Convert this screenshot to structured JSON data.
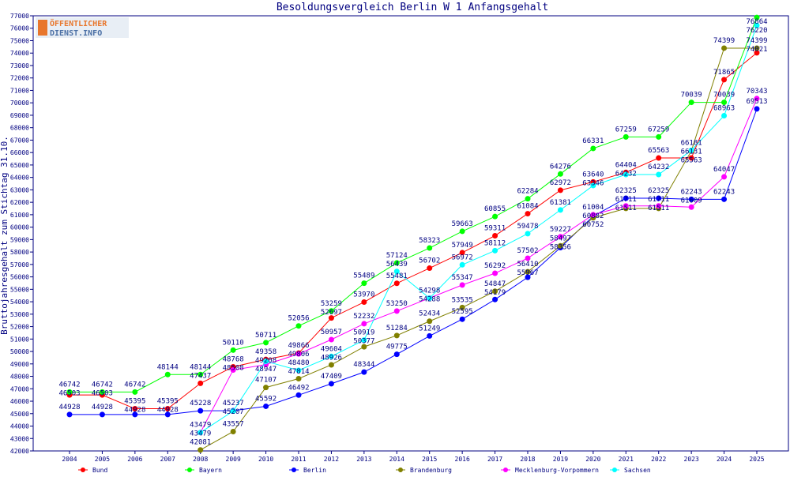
{
  "logo": {
    "line1": "ÖFFENTLICHER",
    "line2": "DIENST.INFO"
  },
  "chart_data": {
    "type": "line",
    "title": "Besoldungsvergleich Berlin W 1 Anfangsgehalt",
    "xlabel": "",
    "ylabel": "Bruttojahresgehalt zum Stichtag 31.10.",
    "ylim": [
      42000,
      77000
    ],
    "ytick_step": 1000,
    "grid": false,
    "legend_placement": "bottom",
    "x": [
      2004,
      2005,
      2006,
      2007,
      2008,
      2009,
      2010,
      2011,
      2012,
      2013,
      2014,
      2015,
      2016,
      2017,
      2018,
      2019,
      2020,
      2021,
      2022,
      2023,
      2024,
      2025
    ],
    "series": [
      {
        "name": "Bund",
        "color": "#ff0000",
        "values": [
          46503,
          46503,
          45395,
          45395,
          47437,
          48768,
          49358,
          49866,
          52697,
          53970,
          55481,
          56702,
          57949,
          59311,
          61084,
          62972,
          63640,
          64404,
          65563,
          65563,
          71865,
          74021
        ]
      },
      {
        "name": "Bayern",
        "color": "#00ff00",
        "values": [
          46742,
          46742,
          46742,
          48144,
          48144,
          50110,
          50711,
          52056,
          53259,
          55489,
          57124,
          58323,
          59663,
          60855,
          62284,
          64276,
          66331,
          67259,
          67259,
          70039,
          70039,
          76864
        ]
      },
      {
        "name": "Berlin",
        "color": "#0000ff",
        "values": [
          44928,
          44928,
          44928,
          44928,
          45228,
          45237,
          45592,
          46492,
          47409,
          48344,
          49775,
          51249,
          52595,
          54179,
          55967,
          58356,
          60882,
          62325,
          62325,
          62243,
          62243,
          69513
        ]
      },
      {
        "name": "Brandenburg",
        "color": "#808000",
        "values": [
          null,
          null,
          null,
          null,
          42081,
          43557,
          47107,
          47814,
          48926,
          50377,
          51284,
          52434,
          53535,
          54847,
          56410,
          58497,
          60752,
          61511,
          61511,
          66131,
          74399,
          74399
        ]
      },
      {
        "name": "Mecklenburg-Vorpommern",
        "color": "#ff00ff",
        "values": [
          null,
          null,
          null,
          null,
          43479,
          48508,
          48947,
          49806,
          50957,
          52232,
          53250,
          54298,
          55347,
          56292,
          57502,
          59227,
          61004,
          61711,
          61711,
          61609,
          64047,
          70343
        ]
      },
      {
        "name": "Sachsen",
        "color": "#00ffff",
        "values": [
          null,
          null,
          null,
          null,
          43479,
          45207,
          49208,
          48480,
          49604,
          50919,
          56439,
          54288,
          56972,
          58112,
          59478,
          61381,
          63346,
          64232,
          64232,
          66181,
          68963,
          76220
        ]
      }
    ]
  }
}
